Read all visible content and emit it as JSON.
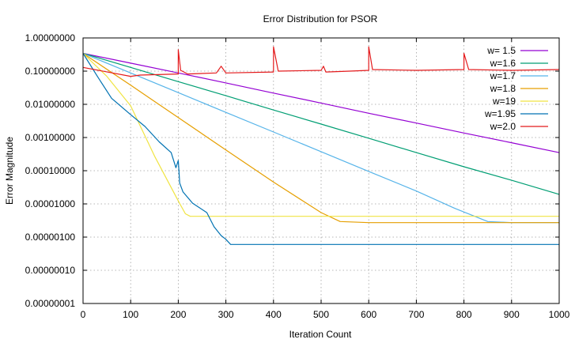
{
  "chart_data": {
    "type": "line",
    "title": "Error Distribution for PSOR",
    "xlabel": "Iteration Count",
    "ylabel": "Error Magnitude",
    "xlim": [
      0,
      1000
    ],
    "ylim": [
      1e-09,
      1
    ],
    "yscale": "log",
    "grid": true,
    "legend_position": "top-right",
    "x_ticks": [
      "0",
      "100",
      "200",
      "300",
      "400",
      "500",
      "600",
      "700",
      "800",
      "900",
      "1000"
    ],
    "y_ticks": [
      "1.00000000",
      "0.10000000",
      "0.01000000",
      "0.00100000",
      "0.00010000",
      "0.00001000",
      "0.00000100",
      "0.00000010",
      "0.00000001"
    ],
    "series": [
      {
        "name": "w= 1.5",
        "color": "#9400d3",
        "points": [
          [
            0,
            0.3
          ],
          [
            100,
            0.14
          ],
          [
            200,
            0.065
          ],
          [
            300,
            0.03
          ],
          [
            400,
            0.0135
          ],
          [
            500,
            0.0062
          ],
          [
            600,
            0.0028
          ],
          [
            700,
            0.0013
          ],
          [
            800,
            0.0006
          ],
          [
            900,
            0.00028
          ],
          [
            1000,
            0.00013
          ]
        ]
      },
      {
        "name": "w=1.6",
        "color": "#009e73",
        "points": [
          [
            0,
            0.3
          ],
          [
            100,
            0.1
          ],
          [
            200,
            0.033
          ],
          [
            300,
            0.011
          ],
          [
            400,
            0.0036
          ],
          [
            500,
            0.0012
          ],
          [
            600,
            0.0004
          ],
          [
            700,
            0.00013
          ],
          [
            800,
            4.3e-05
          ],
          [
            900,
            1.5e-05
          ],
          [
            1000,
            5e-06
          ]
        ]
      },
      {
        "name": "w=1.7",
        "color": "#56b4e9",
        "points": [
          [
            0,
            0.3
          ],
          [
            100,
            0.065
          ],
          [
            200,
            0.014
          ],
          [
            300,
            0.003
          ],
          [
            400,
            0.00065
          ],
          [
            500,
            0.00014
          ],
          [
            600,
            3e-05
          ],
          [
            700,
            6.5e-06
          ],
          [
            780,
            1.7e-06
          ],
          [
            850,
            6e-07
          ],
          [
            900,
            5.5e-07
          ],
          [
            1000,
            5.5e-07
          ]
        ]
      },
      {
        "name": "w=1.8",
        "color": "#e69f00",
        "points": [
          [
            0,
            0.3
          ],
          [
            100,
            0.025
          ],
          [
            200,
            0.002
          ],
          [
            300,
            0.00016
          ],
          [
            400,
            1.3e-05
          ],
          [
            500,
            1.2e-06
          ],
          [
            540,
            6e-07
          ],
          [
            600,
            5.5e-07
          ],
          [
            1000,
            5.5e-07
          ]
        ]
      },
      {
        "name": "w=19",
        "color": "#f0e442",
        "points": [
          [
            0,
            0.3
          ],
          [
            50,
            0.05
          ],
          [
            100,
            0.005
          ],
          [
            150,
            0.0001
          ],
          [
            200,
            3e-06
          ],
          [
            215,
            1.1e-06
          ],
          [
            225,
            9e-07
          ],
          [
            1000,
            9e-07
          ]
        ]
      },
      {
        "name": "w=1.95",
        "color": "#0072b2",
        "points": [
          [
            0,
            0.3
          ],
          [
            30,
            0.05
          ],
          [
            60,
            0.009
          ],
          [
            100,
            0.0025
          ],
          [
            130,
            0.001
          ],
          [
            160,
            0.0003
          ],
          [
            185,
            0.00013
          ],
          [
            195,
            4e-05
          ],
          [
            200,
            7e-05
          ],
          [
            203,
            1.2e-05
          ],
          [
            210,
            6e-06
          ],
          [
            230,
            2.5e-06
          ],
          [
            260,
            1.2e-06
          ],
          [
            275,
            4e-07
          ],
          [
            290,
            2e-07
          ],
          [
            300,
            1.5e-07
          ],
          [
            310,
            1e-07
          ],
          [
            1000,
            1e-07
          ]
        ]
      },
      {
        "name": "w=2.0",
        "color": "#e41a1c",
        "points": [
          [
            0,
            0.1
          ],
          [
            100,
            0.05
          ],
          [
            120,
            0.055
          ],
          [
            200,
            0.06
          ],
          [
            200,
            0.4
          ],
          [
            205,
            0.08
          ],
          [
            220,
            0.06
          ],
          [
            280,
            0.065
          ],
          [
            290,
            0.11
          ],
          [
            300,
            0.065
          ],
          [
            400,
            0.07
          ],
          [
            400,
            0.5
          ],
          [
            410,
            0.075
          ],
          [
            500,
            0.08
          ],
          [
            505,
            0.11
          ],
          [
            510,
            0.07
          ],
          [
            560,
            0.075
          ],
          [
            600,
            0.08
          ],
          [
            600,
            0.5
          ],
          [
            608,
            0.085
          ],
          [
            700,
            0.08
          ],
          [
            800,
            0.085
          ],
          [
            800,
            0.3
          ],
          [
            810,
            0.085
          ],
          [
            900,
            0.08
          ],
          [
            1000,
            0.085
          ]
        ]
      }
    ]
  }
}
